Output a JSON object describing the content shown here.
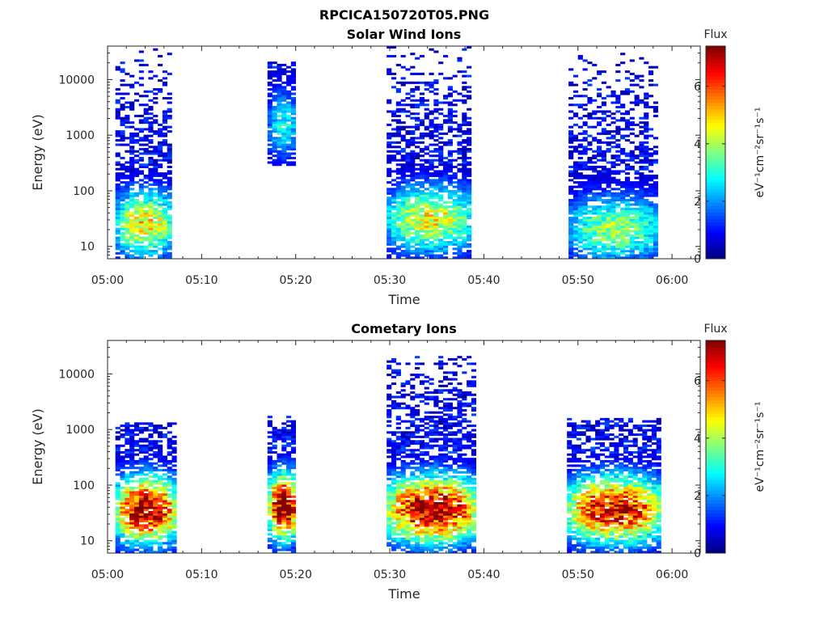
{
  "figure": {
    "title": "RPCICA150720T05.PNG"
  },
  "chart_data": [
    {
      "type": "heatmap",
      "title": "Solar Wind Ions",
      "xlabel": "Time",
      "ylabel": "Energy (eV)",
      "x_ticks": [
        "05:00",
        "05:10",
        "05:20",
        "05:30",
        "05:40",
        "05:50",
        "06:00"
      ],
      "xlim": [
        "05:00",
        "06:03"
      ],
      "y_scale": "log",
      "y_ticks": [
        "10",
        "100",
        "1000",
        "10000"
      ],
      "ylim": [
        6,
        40000
      ],
      "colorbar": {
        "label": "Flux",
        "units": "eV⁻¹cm⁻²sr⁻¹s⁻¹",
        "range": [
          0,
          7.4
        ],
        "ticks": [
          "0",
          "2",
          "4",
          "6"
        ],
        "colormap": "jet"
      },
      "active_intervals": [
        {
          "start": "05:00:50",
          "end": "05:06:40",
          "emin": 6,
          "emax": 40000,
          "core_flux": 4.5,
          "core_energy": 25
        },
        {
          "start": "05:17:00",
          "end": "05:20:00",
          "emin": 300,
          "emax": 20000,
          "core_flux": 2.5,
          "core_energy": 1500
        },
        {
          "start": "05:29:40",
          "end": "05:38:40",
          "emin": 6,
          "emax": 40000,
          "core_flux": 4.2,
          "core_energy": 30
        },
        {
          "start": "05:49:00",
          "end": "05:58:30",
          "emin": 6,
          "emax": 30000,
          "core_flux": 3.5,
          "core_energy": 20
        }
      ]
    },
    {
      "type": "heatmap",
      "title": "Cometary Ions",
      "xlabel": "Time",
      "ylabel": "Energy (eV)",
      "x_ticks": [
        "05:00",
        "05:10",
        "05:20",
        "05:30",
        "05:40",
        "05:50",
        "06:00"
      ],
      "xlim": [
        "05:00",
        "06:03"
      ],
      "y_scale": "log",
      "y_ticks": [
        "10",
        "100",
        "1000",
        "10000"
      ],
      "ylim": [
        6,
        40000
      ],
      "colorbar": {
        "label": "Flux",
        "units": "eV⁻¹cm⁻²sr⁻¹s⁻¹",
        "range": [
          0,
          7.4
        ],
        "ticks": [
          "0",
          "2",
          "4",
          "6"
        ],
        "colormap": "jet"
      },
      "active_intervals": [
        {
          "start": "05:00:50",
          "end": "05:07:00",
          "emin": 6,
          "emax": 1300,
          "core_flux": 7.0,
          "core_energy": 35
        },
        {
          "start": "05:17:00",
          "end": "05:20:00",
          "emin": 6,
          "emax": 1700,
          "core_flux": 7.2,
          "core_energy": 40
        },
        {
          "start": "05:29:40",
          "end": "05:39:00",
          "emin": 6,
          "emax": 20000,
          "core_flux": 7.0,
          "core_energy": 35
        },
        {
          "start": "05:48:50",
          "end": "05:58:30",
          "emin": 6,
          "emax": 1500,
          "core_flux": 6.5,
          "core_energy": 35
        }
      ]
    }
  ]
}
